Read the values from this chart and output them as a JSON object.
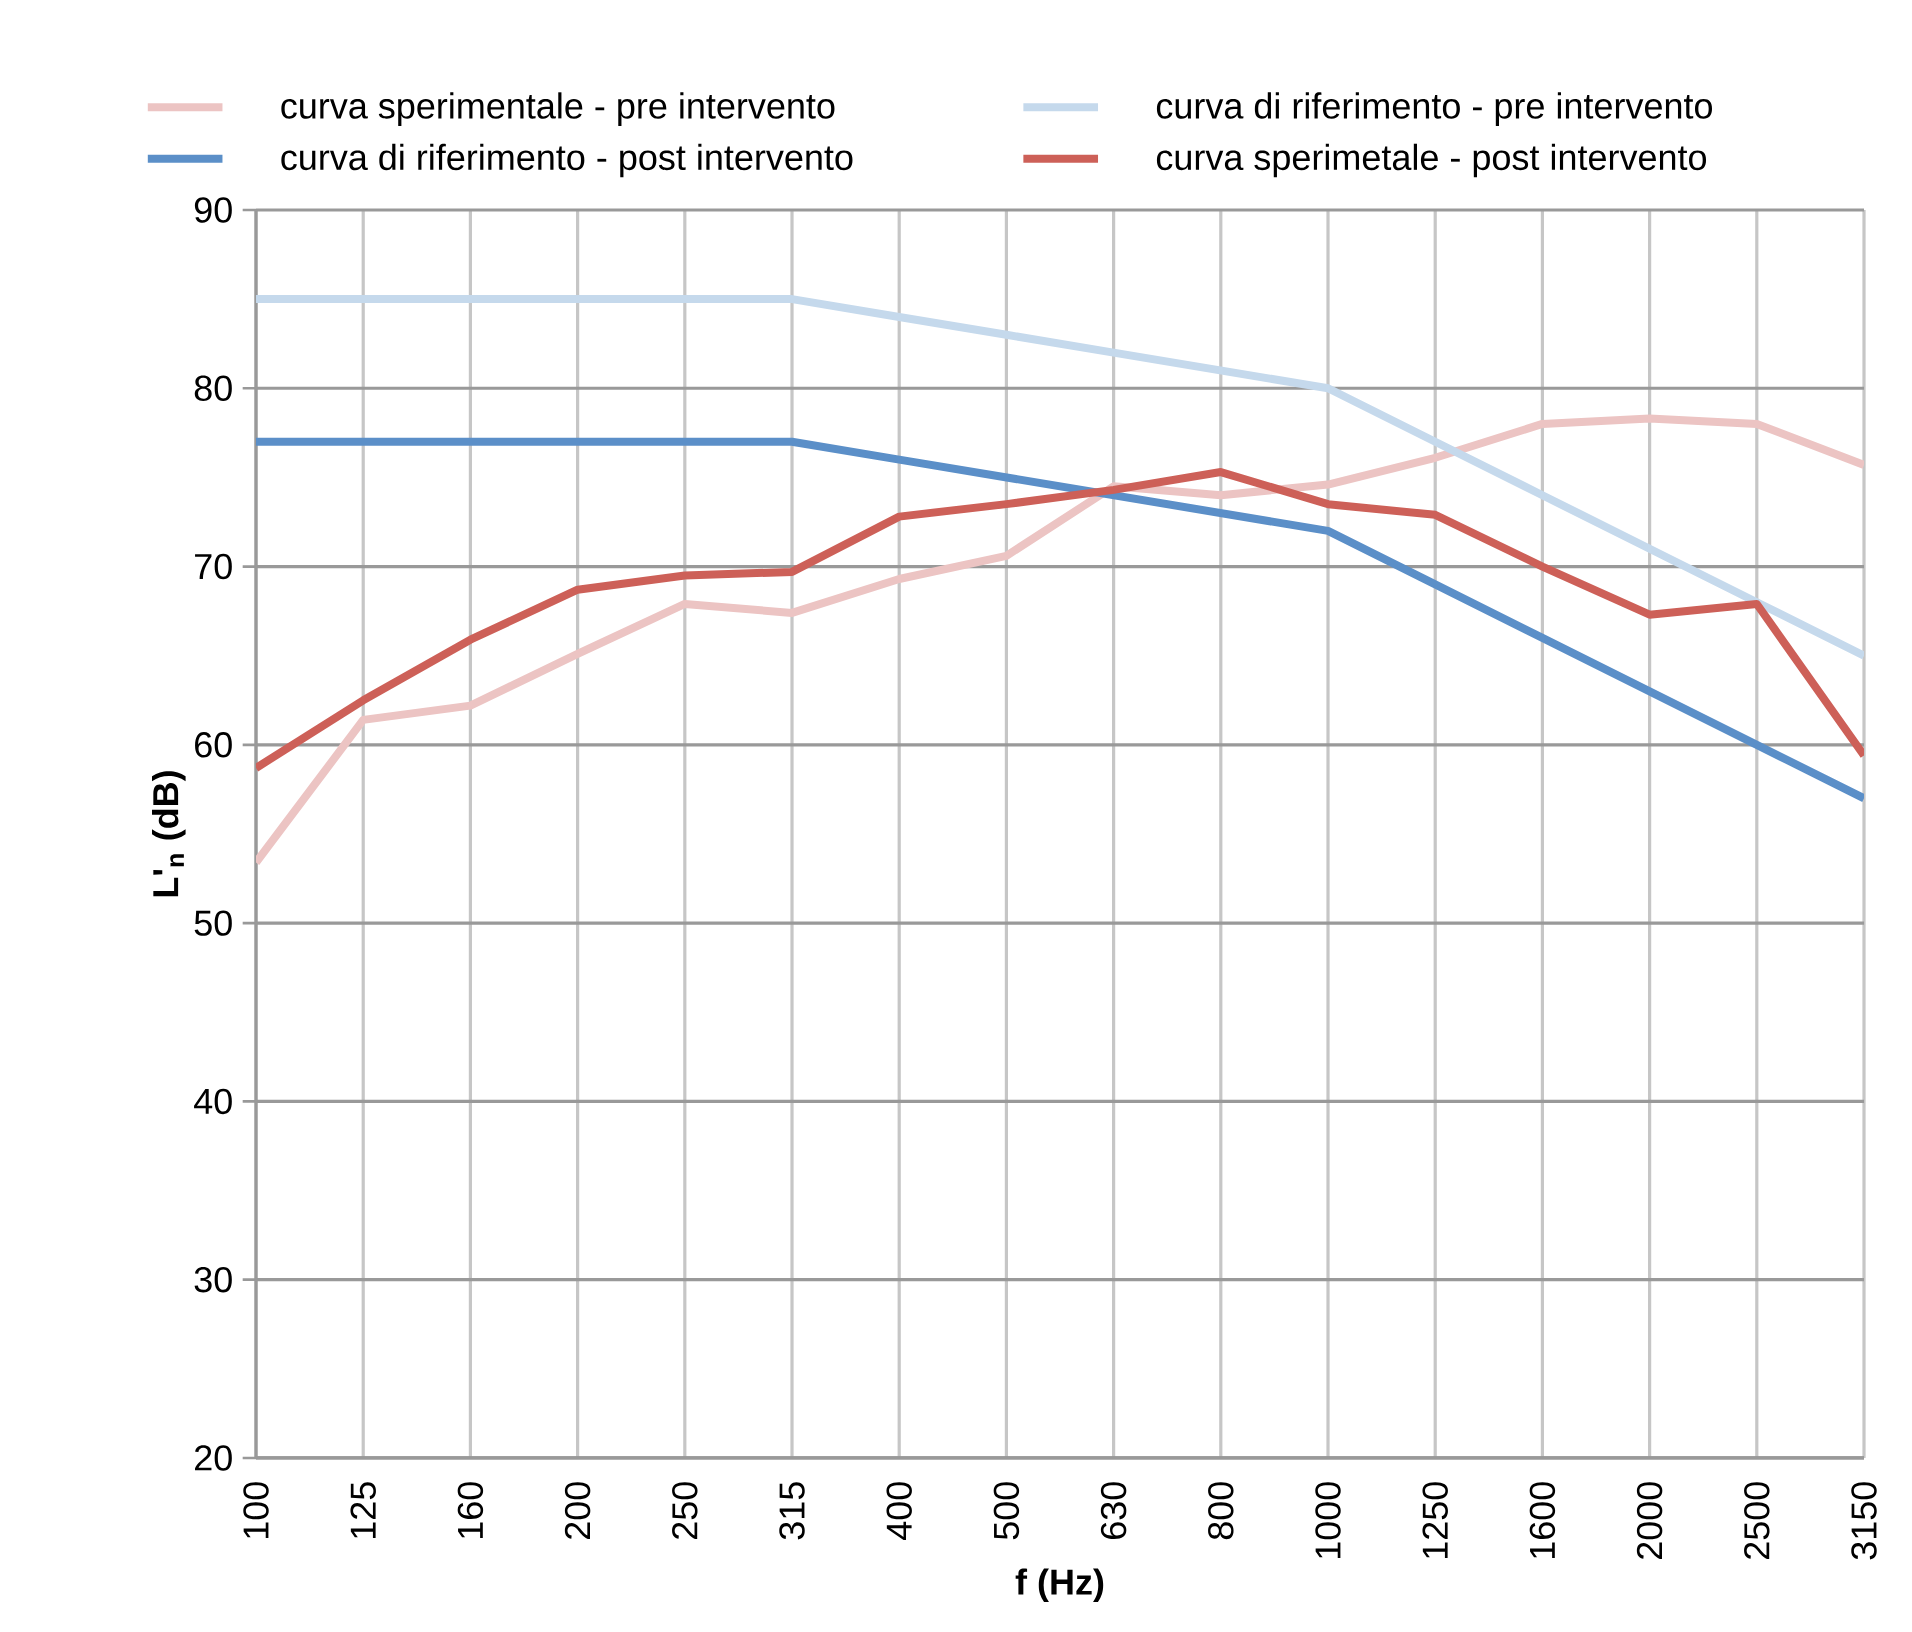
{
  "chart_data": {
    "type": "line",
    "xlabel": "f (Hz)",
    "ylabel": "L'$_{n}$ (dB)",
    "categories": [
      "100",
      "125",
      "160",
      "200",
      "250",
      "315",
      "400",
      "500",
      "630",
      "800",
      "1000",
      "1250",
      "1600",
      "2000",
      "2500",
      "3150"
    ],
    "series": [
      {
        "name": "curva sperimentale - pre intervento",
        "color": "#ecc4c3",
        "values": [
          53.4,
          61.4,
          62.2,
          65.1,
          67.9,
          67.4,
          69.3,
          70.6,
          74.5,
          74.0,
          74.6,
          76.1,
          78.0,
          78.3,
          78.0,
          75.7
        ]
      },
      {
        "name": "curva di riferimento - pre intervento",
        "color": "#c5d9ec",
        "values": [
          85,
          85,
          85,
          85,
          85,
          85,
          84,
          83,
          82,
          81,
          80,
          77,
          74,
          71,
          68,
          65
        ]
      },
      {
        "name": "curva di riferimento - post intervento",
        "color": "#5b8fc8",
        "values": [
          77,
          77,
          77,
          77,
          77,
          77,
          76,
          75,
          74,
          73,
          72,
          69,
          66,
          63,
          60,
          57
        ]
      },
      {
        "name": "curva sperimetale - post intervento",
        "color": "#cd6058",
        "values": [
          58.7,
          62.5,
          65.9,
          68.7,
          69.5,
          69.7,
          72.8,
          73.5,
          74.3,
          75.3,
          73.5,
          72.9,
          70.0,
          67.3,
          67.9,
          59.4
        ]
      }
    ],
    "ylim": [
      20,
      90
    ],
    "yticks": [
      20,
      30,
      40,
      50,
      60,
      70,
      80,
      90
    ],
    "grid": true,
    "legend": "top",
    "marker": "none",
    "line_style": "solid"
  }
}
